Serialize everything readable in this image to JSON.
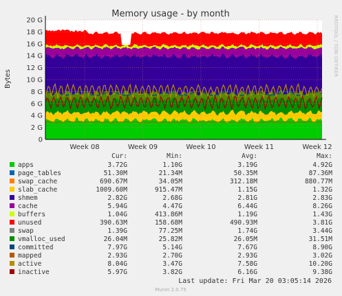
{
  "chart_data": {
    "type": "area",
    "title": "Memory usage - by month",
    "ylabel": "Bytes",
    "watermark": "RRDTOOL / TOBI OETIKER",
    "footer": "Munin 2.0.75",
    "last_update": "Last update: Fri Mar 20 03:05:14 2026",
    "ylim": [
      0,
      20
    ],
    "y_ticks": [
      "0",
      "2 G",
      "4 G",
      "6 G",
      "8 G",
      "10 G",
      "12 G",
      "14 G",
      "16 G",
      "18 G",
      "20 G"
    ],
    "x_ticks": [
      "Week 08",
      "Week 09",
      "Week 10",
      "Week 11",
      "Week 12"
    ],
    "grid": true,
    "columns": [
      "Cur:",
      "Min:",
      "Avg:",
      "Max:"
    ],
    "series": [
      {
        "name": "apps",
        "color": "#00cc00",
        "cur": "3.72G",
        "min": "1.10G",
        "avg": "3.19G",
        "max": "4.92G",
        "level": 3.2,
        "stacked": true
      },
      {
        "name": "page_tables",
        "color": "#0066b3",
        "cur": "51.30M",
        "min": "21.34M",
        "avg": "50.35M",
        "max": "87.36M",
        "level": 0.05,
        "stacked": true
      },
      {
        "name": "swap_cache",
        "color": "#ff8000",
        "cur": "690.67M",
        "min": "34.05M",
        "avg": "312.18M",
        "max": "880.77M",
        "level": 0.3,
        "stacked": true
      },
      {
        "name": "slab_cache",
        "color": "#ffcc00",
        "cur": "1009.60M",
        "min": "915.47M",
        "avg": "1.15G",
        "max": "1.32G",
        "level": 1.15,
        "stacked": true
      },
      {
        "name": "shmem",
        "color": "#330099",
        "cur": "2.82G",
        "min": "2.68G",
        "avg": "2.81G",
        "max": "2.83G",
        "level": 0.0,
        "stacked": true
      },
      {
        "name": "cache",
        "color": "#990099",
        "cur": "5.94G",
        "min": "4.47G",
        "avg": "6.44G",
        "max": "8.26G",
        "level": 0.0,
        "stacked": true
      },
      {
        "name": "buffers",
        "color": "#ccff00",
        "cur": "1.04G",
        "min": "413.86M",
        "avg": "1.19G",
        "max": "1.43G",
        "level": 0.0,
        "stacked": true
      },
      {
        "name": "unused",
        "color": "#ff0000",
        "cur": "390.63M",
        "min": "158.68M",
        "avg": "490.93M",
        "max": "3.81G",
        "level": 0.0,
        "stacked": true
      },
      {
        "name": "swap",
        "color": "#808080",
        "cur": "1.39G",
        "min": "77.25M",
        "avg": "1.74G",
        "max": "3.44G",
        "level": 0.0,
        "stacked": true
      },
      {
        "name": "vmalloc_used",
        "color": "#008f00",
        "cur": "26.04M",
        "min": "25.82M",
        "avg": "26.05M",
        "max": "31.51M",
        "level": 0.0,
        "stacked": false
      },
      {
        "name": "committed",
        "color": "#00487d",
        "cur": "7.97G",
        "min": "5.14G",
        "avg": "7.67G",
        "max": "8.90G",
        "level": 7.7,
        "stacked": false
      },
      {
        "name": "mapped",
        "color": "#b35a00",
        "cur": "2.93G",
        "min": "2.70G",
        "avg": "2.93G",
        "max": "3.02G",
        "level": 2.9,
        "stacked": false
      },
      {
        "name": "active",
        "color": "#b38f00",
        "cur": "8.04G",
        "min": "3.47G",
        "avg": "7.58G",
        "max": "10.20G",
        "level": 7.6,
        "stacked": false
      },
      {
        "name": "inactive",
        "color": "#a00000",
        "cur": "5.97G",
        "min": "3.82G",
        "avg": "6.16G",
        "max": "9.38G",
        "level": 6.2,
        "stacked": false
      }
    ],
    "bands": [
      {
        "name": "apps",
        "color": "#00cc00",
        "bottom": 0,
        "top": 3.2
      },
      {
        "name": "slab_cache",
        "color": "#ffcc00",
        "bottom": 3.2,
        "top": 4.5
      },
      {
        "name": "green_mid",
        "color": "#008f00",
        "bottom": 4.5,
        "top": 6.6
      },
      {
        "name": "olive_mid",
        "color": "#558800",
        "bottom": 6.6,
        "top": 7.8
      },
      {
        "name": "indigo",
        "color": "#330099",
        "bottom": 7.8,
        "top": 13.9
      },
      {
        "name": "purple",
        "color": "#990099",
        "bottom": 13.9,
        "top": 15.3
      },
      {
        "name": "yellow_line",
        "color": "#ccff00",
        "bottom": 15.3,
        "top": 15.7
      },
      {
        "name": "red_top",
        "color": "#ff0000",
        "bottom": 15.7,
        "top": 17.8
      }
    ]
  }
}
